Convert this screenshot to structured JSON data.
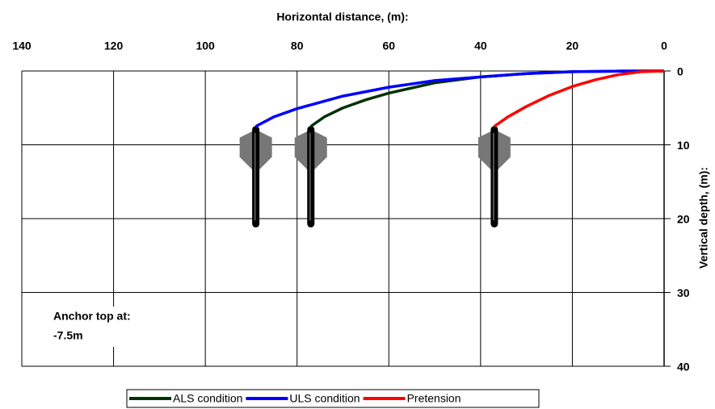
{
  "chart_data": {
    "type": "line",
    "x_label": "Horizontal distance, (m):",
    "y_label": "Vertical depth, (m):",
    "annotation": [
      "Anchor top at:",
      "-7.5m"
    ],
    "xlim": [
      140,
      0
    ],
    "xticks": [
      140,
      120,
      100,
      80,
      60,
      40,
      20,
      0
    ],
    "ylim": [
      0,
      40
    ],
    "yticks": [
      0,
      10,
      20,
      30,
      40
    ],
    "y_reversed": true,
    "grid": true,
    "series": [
      {
        "name": "ALS condition",
        "color": "#003300",
        "x": [
          0,
          10,
          20,
          30,
          40,
          50,
          60,
          65,
          70,
          74,
          77
        ],
        "values": [
          0,
          0.02,
          0.1,
          0.35,
          0.8,
          1.6,
          3.0,
          3.9,
          5.0,
          6.2,
          7.5
        ]
      },
      {
        "name": "ULS condition",
        "color": "#0000ff",
        "x": [
          0,
          10,
          20,
          30,
          40,
          50,
          60,
          70,
          80,
          85,
          89
        ],
        "values": [
          0,
          0.02,
          0.1,
          0.35,
          0.8,
          1.3,
          2.2,
          3.4,
          5.1,
          6.2,
          7.5
        ]
      },
      {
        "name": "Pretension",
        "color": "#ff0000",
        "x": [
          0,
          5,
          10,
          15,
          20,
          25,
          30,
          34,
          37
        ],
        "values": [
          0,
          0.1,
          0.5,
          1.2,
          2.1,
          3.3,
          4.8,
          6.2,
          7.5
        ]
      }
    ]
  }
}
